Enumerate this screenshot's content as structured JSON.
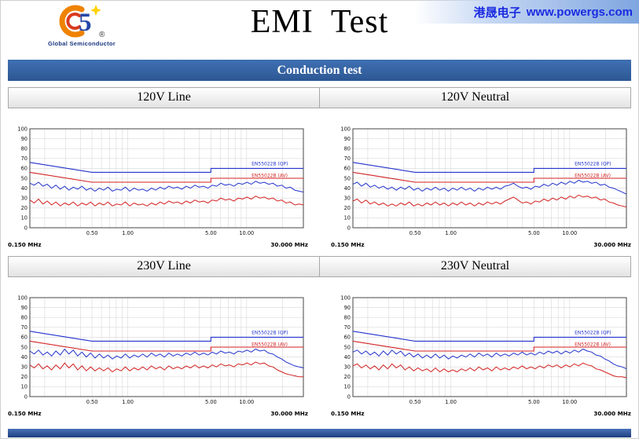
{
  "header": {
    "title": "EMI  Test",
    "logo": {
      "five": "5",
      "registered": "®",
      "caption": "Global Semiconductor"
    },
    "vendor": {
      "cjk": "港晟电子",
      "url": "www.powergs.com"
    }
  },
  "banner": {
    "label": "Conduction test"
  },
  "colors": {
    "banner_blue": "#2d5794",
    "vendor_text": "#1b2be0",
    "qp_blue": "#2233cc",
    "av_red": "#d42222",
    "grid_gray": "#d8d8d8"
  },
  "chart_data": {
    "type": "line",
    "x_axis": {
      "scale": "log",
      "min": 0.15,
      "max": 30,
      "unit": "MHz",
      "min_label": "0.150 MHz",
      "max_label": "30.000 MHz",
      "ticks": [
        {
          "value": 0.5,
          "label": "0.50"
        },
        {
          "value": 1.0,
          "label": "1.00"
        },
        {
          "value": 5.0,
          "label": "5.00"
        },
        {
          "value": 10.0,
          "label": "10.00"
        }
      ]
    },
    "y_axis": {
      "min": 0,
      "max": 100,
      "step": 10
    },
    "values_x_spacing": "log-spaced from 0.15 to 30 MHz",
    "limits": {
      "qp": {
        "label": "EN55022B (QP)",
        "color": "#2233cc",
        "points": [
          [
            0.15,
            66
          ],
          [
            0.5,
            56
          ],
          [
            5,
            56
          ],
          [
            5,
            60
          ],
          [
            30,
            60
          ]
        ]
      },
      "av": {
        "label": "EN55022B (AV)",
        "color": "#d42222",
        "points": [
          [
            0.15,
            56
          ],
          [
            0.5,
            46
          ],
          [
            5,
            46
          ],
          [
            5,
            50
          ],
          [
            30,
            50
          ]
        ]
      }
    },
    "charts": [
      {
        "title": "120V Line",
        "series": [
          {
            "name": "QP measured",
            "color": "#2233cc",
            "values": [
              45,
              43,
              46,
              42,
              44,
              40,
              43,
              39,
              42,
              38,
              41,
              39,
              42,
              38,
              40,
              37,
              40,
              38,
              41,
              37,
              39,
              38,
              41,
              37,
              40,
              38,
              39,
              37,
              40,
              38,
              41,
              39,
              42,
              40,
              41,
              39,
              42,
              40,
              43,
              41,
              42,
              40,
              43,
              42,
              45,
              43,
              44,
              42,
              45,
              44,
              46,
              44,
              47,
              45,
              46,
              44,
              45,
              42,
              43,
              40,
              41,
              38,
              37,
              36
            ]
          },
          {
            "name": "AV measured",
            "color": "#d42222",
            "values": [
              28,
              25,
              29,
              24,
              27,
              23,
              26,
              22,
              25,
              23,
              26,
              22,
              25,
              23,
              26,
              22,
              25,
              23,
              26,
              22,
              24,
              23,
              26,
              22,
              25,
              23,
              24,
              22,
              25,
              23,
              26,
              24,
              27,
              25,
              26,
              24,
              27,
              25,
              28,
              26,
              27,
              25,
              28,
              27,
              30,
              28,
              29,
              27,
              30,
              29,
              31,
              29,
              32,
              30,
              31,
              29,
              30,
              27,
              28,
              25,
              26,
              23,
              24,
              23
            ]
          }
        ]
      },
      {
        "title": "120V Neutral",
        "series": [
          {
            "name": "QP measured",
            "color": "#2233cc",
            "values": [
              44,
              46,
              42,
              45,
              41,
              43,
              40,
              42,
              39,
              41,
              38,
              41,
              39,
              42,
              38,
              40,
              37,
              40,
              38,
              41,
              38,
              40,
              37,
              40,
              38,
              41,
              38,
              40,
              37,
              40,
              38,
              41,
              39,
              41,
              39,
              42,
              43,
              45,
              42,
              40,
              41,
              39,
              42,
              41,
              44,
              42,
              45,
              43,
              46,
              44,
              47,
              45,
              48,
              46,
              47,
              45,
              46,
              43,
              44,
              41,
              40,
              38,
              36,
              34
            ]
          },
          {
            "name": "AV measured",
            "color": "#d42222",
            "values": [
              27,
              29,
              25,
              28,
              24,
              26,
              23,
              25,
              22,
              24,
              22,
              25,
              23,
              26,
              22,
              24,
              22,
              25,
              23,
              26,
              23,
              25,
              22,
              25,
              23,
              26,
              23,
              25,
              22,
              25,
              23,
              26,
              24,
              26,
              24,
              27,
              29,
              31,
              28,
              25,
              26,
              24,
              27,
              26,
              29,
              27,
              30,
              28,
              31,
              29,
              32,
              30,
              33,
              31,
              32,
              30,
              31,
              28,
              29,
              26,
              25,
              23,
              22,
              21
            ]
          }
        ]
      },
      {
        "title": "230V Line",
        "series": [
          {
            "name": "QP measured",
            "color": "#2233cc",
            "values": [
              46,
              43,
              47,
              42,
              45,
              41,
              46,
              42,
              48,
              43,
              47,
              41,
              45,
              40,
              44,
              39,
              43,
              39,
              42,
              38,
              41,
              39,
              43,
              39,
              42,
              40,
              43,
              40,
              44,
              41,
              43,
              40,
              44,
              41,
              43,
              41,
              44,
              42,
              45,
              42,
              44,
              42,
              45,
              43,
              46,
              44,
              45,
              43,
              46,
              45,
              47,
              45,
              48,
              46,
              47,
              44,
              43,
              40,
              38,
              35,
              33,
              31,
              30,
              29
            ]
          },
          {
            "name": "AV measured",
            "color": "#d42222",
            "values": [
              32,
              29,
              33,
              28,
              31,
              27,
              32,
              28,
              34,
              29,
              33,
              27,
              31,
              26,
              30,
              26,
              29,
              26,
              29,
              25,
              28,
              26,
              30,
              26,
              29,
              27,
              30,
              27,
              31,
              28,
              30,
              27,
              31,
              28,
              30,
              28,
              31,
              29,
              32,
              29,
              31,
              29,
              32,
              30,
              33,
              31,
              32,
              30,
              33,
              32,
              34,
              32,
              35,
              33,
              34,
              31,
              30,
              27,
              25,
              23,
              22,
              21,
              20,
              20
            ]
          }
        ]
      },
      {
        "title": "230V Neutral",
        "series": [
          {
            "name": "QP measured",
            "color": "#2233cc",
            "values": [
              45,
              47,
              43,
              46,
              42,
              45,
              41,
              46,
              42,
              47,
              43,
              46,
              41,
              44,
              40,
              43,
              39,
              42,
              39,
              43,
              39,
              42,
              38,
              41,
              39,
              42,
              40,
              43,
              40,
              44,
              41,
              43,
              40,
              44,
              41,
              43,
              41,
              44,
              42,
              45,
              42,
              44,
              42,
              45,
              43,
              46,
              44,
              46,
              43,
              46,
              44,
              47,
              45,
              48,
              46,
              45,
              42,
              41,
              38,
              36,
              33,
              31,
              30,
              28
            ]
          },
          {
            "name": "AV measured",
            "color": "#d42222",
            "values": [
              31,
              33,
              29,
              32,
              28,
              31,
              27,
              32,
              28,
              33,
              29,
              32,
              27,
              30,
              26,
              29,
              26,
              28,
              25,
              29,
              25,
              28,
              25,
              27,
              25,
              28,
              26,
              29,
              26,
              30,
              27,
              29,
              26,
              30,
              27,
              29,
              27,
              30,
              28,
              31,
              28,
              30,
              28,
              31,
              29,
              32,
              30,
              32,
              29,
              32,
              30,
              33,
              31,
              34,
              32,
              31,
              28,
              27,
              25,
              23,
              21,
              20,
              20,
              19
            ]
          }
        ]
      }
    ]
  }
}
